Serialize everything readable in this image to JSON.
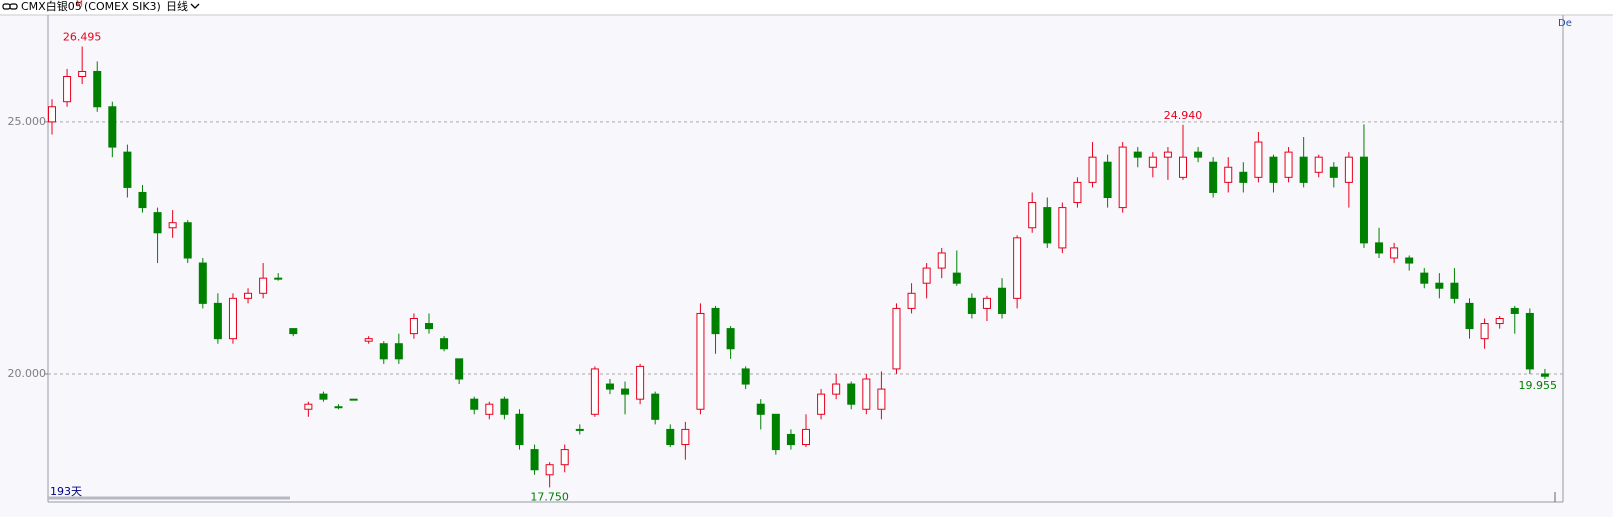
{
  "chart_data": {
    "type": "candlestick",
    "title": "CMX白银05",
    "title_mark": "M",
    "subtitle": "(COMEX SIK3)",
    "period": "日线",
    "corner_label": "De",
    "bar_count_label": "193天",
    "ylim": [
      17.5,
      27.12
    ],
    "yticks": [
      {
        "value": 25,
        "label": "25.000"
      },
      {
        "value": 20,
        "label": "20.000"
      }
    ],
    "grid": true,
    "up_color": "#e8001c",
    "down_color": "#008000",
    "candles": [
      [
        25.0,
        25.45,
        24.75,
        25.3
      ],
      [
        25.4,
        26.05,
        25.3,
        25.9
      ],
      [
        25.9,
        26.495,
        25.75,
        26.0
      ],
      [
        26.0,
        26.2,
        25.2,
        25.3
      ],
      [
        25.3,
        25.4,
        24.3,
        24.5
      ],
      [
        24.4,
        24.55,
        23.5,
        23.7
      ],
      [
        23.6,
        23.75,
        23.2,
        23.3
      ],
      [
        23.2,
        23.3,
        22.2,
        22.8
      ],
      [
        22.9,
        23.25,
        22.7,
        23.0
      ],
      [
        23.0,
        23.05,
        22.2,
        22.3
      ],
      [
        22.2,
        22.3,
        21.3,
        21.4
      ],
      [
        21.4,
        21.6,
        20.6,
        20.7
      ],
      [
        20.7,
        21.6,
        20.6,
        21.5
      ],
      [
        21.5,
        21.7,
        21.4,
        21.6
      ],
      [
        21.6,
        22.2,
        21.5,
        21.9
      ],
      [
        21.9,
        22.0,
        21.85,
        21.9
      ],
      [
        20.9,
        20.9,
        20.75,
        20.8
      ],
      [
        19.3,
        19.45,
        19.15,
        19.4
      ],
      [
        19.6,
        19.65,
        19.45,
        19.5
      ],
      [
        19.35,
        19.4,
        19.3,
        19.35
      ],
      [
        19.5,
        19.5,
        19.5,
        19.5
      ],
      [
        20.65,
        20.75,
        20.6,
        20.7
      ],
      [
        20.6,
        20.65,
        20.2,
        20.3
      ],
      [
        20.6,
        20.8,
        20.2,
        20.3
      ],
      [
        20.8,
        21.2,
        20.7,
        21.1
      ],
      [
        21.0,
        21.2,
        20.8,
        20.9
      ],
      [
        20.7,
        20.75,
        20.45,
        20.5
      ],
      [
        20.3,
        20.3,
        19.8,
        19.9
      ],
      [
        19.5,
        19.55,
        19.2,
        19.3
      ],
      [
        19.2,
        19.45,
        19.1,
        19.4
      ],
      [
        19.5,
        19.55,
        19.1,
        19.2
      ],
      [
        19.2,
        19.3,
        18.5,
        18.6
      ],
      [
        18.5,
        18.6,
        18.0,
        18.1
      ],
      [
        18.0,
        18.25,
        17.75,
        18.2
      ],
      [
        18.2,
        18.6,
        18.05,
        18.5
      ],
      [
        18.9,
        19.0,
        18.8,
        18.9
      ],
      [
        19.2,
        20.15,
        19.15,
        20.1
      ],
      [
        19.8,
        19.9,
        19.6,
        19.7
      ],
      [
        19.7,
        19.85,
        19.2,
        19.6
      ],
      [
        19.5,
        20.2,
        19.4,
        20.15
      ],
      [
        19.6,
        19.65,
        19.0,
        19.1
      ],
      [
        18.9,
        19.0,
        18.55,
        18.6
      ],
      [
        18.6,
        19.05,
        18.3,
        18.9
      ],
      [
        19.3,
        21.4,
        19.2,
        21.2
      ],
      [
        21.3,
        21.35,
        20.4,
        20.8
      ],
      [
        20.9,
        20.95,
        20.3,
        20.5
      ],
      [
        20.1,
        20.15,
        19.7,
        19.8
      ],
      [
        19.4,
        19.5,
        18.9,
        19.2
      ],
      [
        19.2,
        19.2,
        18.4,
        18.5
      ],
      [
        18.8,
        18.9,
        18.5,
        18.6
      ],
      [
        18.6,
        19.2,
        18.55,
        18.9
      ],
      [
        19.2,
        19.7,
        19.1,
        19.6
      ],
      [
        19.6,
        20.0,
        19.5,
        19.8
      ],
      [
        19.8,
        19.85,
        19.3,
        19.4
      ],
      [
        19.3,
        20.0,
        19.2,
        19.9
      ],
      [
        19.3,
        20.05,
        19.1,
        19.7
      ],
      [
        20.1,
        21.4,
        20.0,
        21.3
      ],
      [
        21.3,
        21.8,
        21.2,
        21.6
      ],
      [
        21.8,
        22.2,
        21.5,
        22.1
      ],
      [
        22.1,
        22.5,
        21.9,
        22.4
      ],
      [
        22.0,
        22.45,
        21.75,
        21.8
      ],
      [
        21.5,
        21.6,
        21.1,
        21.2
      ],
      [
        21.3,
        21.55,
        21.05,
        21.5
      ],
      [
        21.7,
        21.9,
        21.1,
        21.2
      ],
      [
        21.5,
        22.75,
        21.3,
        22.7
      ],
      [
        22.9,
        23.6,
        22.8,
        23.4
      ],
      [
        23.3,
        23.5,
        22.5,
        22.6
      ],
      [
        22.5,
        23.4,
        22.4,
        23.3
      ],
      [
        23.4,
        23.9,
        23.3,
        23.8
      ],
      [
        23.8,
        24.6,
        23.7,
        24.3
      ],
      [
        24.2,
        24.35,
        23.3,
        23.5
      ],
      [
        23.3,
        24.6,
        23.2,
        24.5
      ],
      [
        24.4,
        24.5,
        24.1,
        24.3
      ],
      [
        24.1,
        24.4,
        23.9,
        24.3
      ],
      [
        24.3,
        24.5,
        23.85,
        24.4
      ],
      [
        23.9,
        24.94,
        23.85,
        24.3
      ],
      [
        24.4,
        24.5,
        24.2,
        24.3
      ],
      [
        24.2,
        24.3,
        23.5,
        23.6
      ],
      [
        23.8,
        24.3,
        23.6,
        24.1
      ],
      [
        24.0,
        24.2,
        23.6,
        23.8
      ],
      [
        23.9,
        24.8,
        23.8,
        24.6
      ],
      [
        24.3,
        24.35,
        23.6,
        23.8
      ],
      [
        23.9,
        24.5,
        23.8,
        24.4
      ],
      [
        24.3,
        24.7,
        23.7,
        23.8
      ],
      [
        24.0,
        24.35,
        23.9,
        24.3
      ],
      [
        24.1,
        24.2,
        23.7,
        23.9
      ],
      [
        23.8,
        24.4,
        23.3,
        24.3
      ],
      [
        24.3,
        24.95,
        22.5,
        22.6
      ],
      [
        22.6,
        22.9,
        22.3,
        22.4
      ],
      [
        22.3,
        22.6,
        22.2,
        22.5
      ],
      [
        22.3,
        22.35,
        22.05,
        22.2
      ],
      [
        22.0,
        22.1,
        21.7,
        21.8
      ],
      [
        21.8,
        22.0,
        21.5,
        21.7
      ],
      [
        21.8,
        22.1,
        21.4,
        21.5
      ],
      [
        21.4,
        21.5,
        20.7,
        20.9
      ],
      [
        20.7,
        21.1,
        20.5,
        21.0
      ],
      [
        21.0,
        21.15,
        20.9,
        21.1
      ],
      [
        21.3,
        21.35,
        20.8,
        21.2
      ],
      [
        21.2,
        21.3,
        20.0,
        20.1
      ],
      [
        20.0,
        20.1,
        19.9,
        19.955
      ]
    ],
    "annotations": [
      {
        "value": 26.495,
        "label": "26.495"
      },
      {
        "value": 24.94,
        "label": "24.940"
      },
      {
        "value": 17.75,
        "label": "17.750"
      },
      {
        "value": 19.955,
        "label": "19.955"
      }
    ]
  }
}
